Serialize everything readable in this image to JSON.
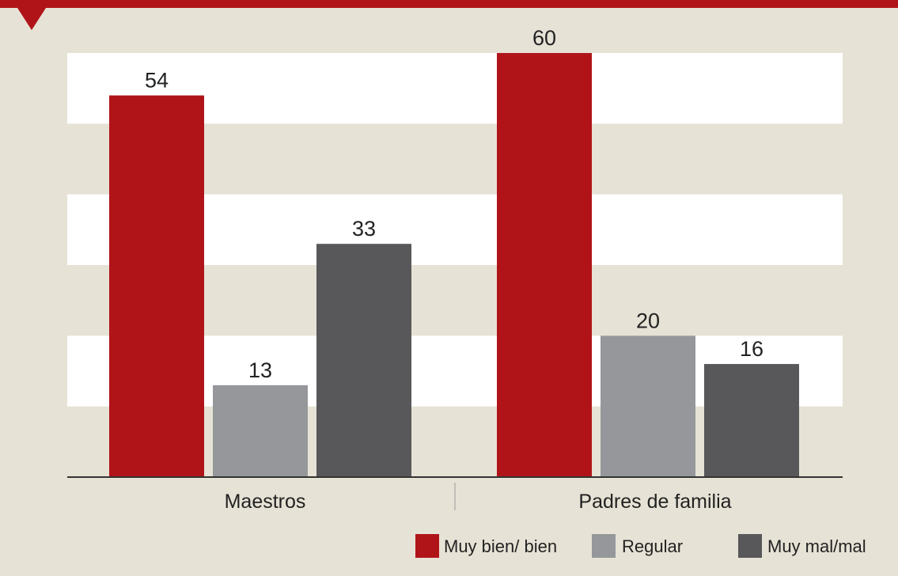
{
  "chart_data": {
    "type": "bar",
    "categories": [
      "Maestros",
      "Padres de familia"
    ],
    "series": [
      {
        "name": "Muy bien/ bien",
        "color": "#b01419",
        "values": [
          54,
          60
        ]
      },
      {
        "name": "Regular",
        "color": "#96979b",
        "values": [
          13,
          20
        ]
      },
      {
        "name": "Muy mal/mal",
        "color": "#58585b",
        "values": [
          33,
          16
        ]
      }
    ],
    "ylim": [
      0,
      60
    ],
    "grid": "alternating white bands",
    "legend": "bottom-right",
    "colors": {
      "background": "#e6e2d5",
      "band": "#ffffff",
      "header": "#b01419",
      "axis": "#333333"
    }
  }
}
